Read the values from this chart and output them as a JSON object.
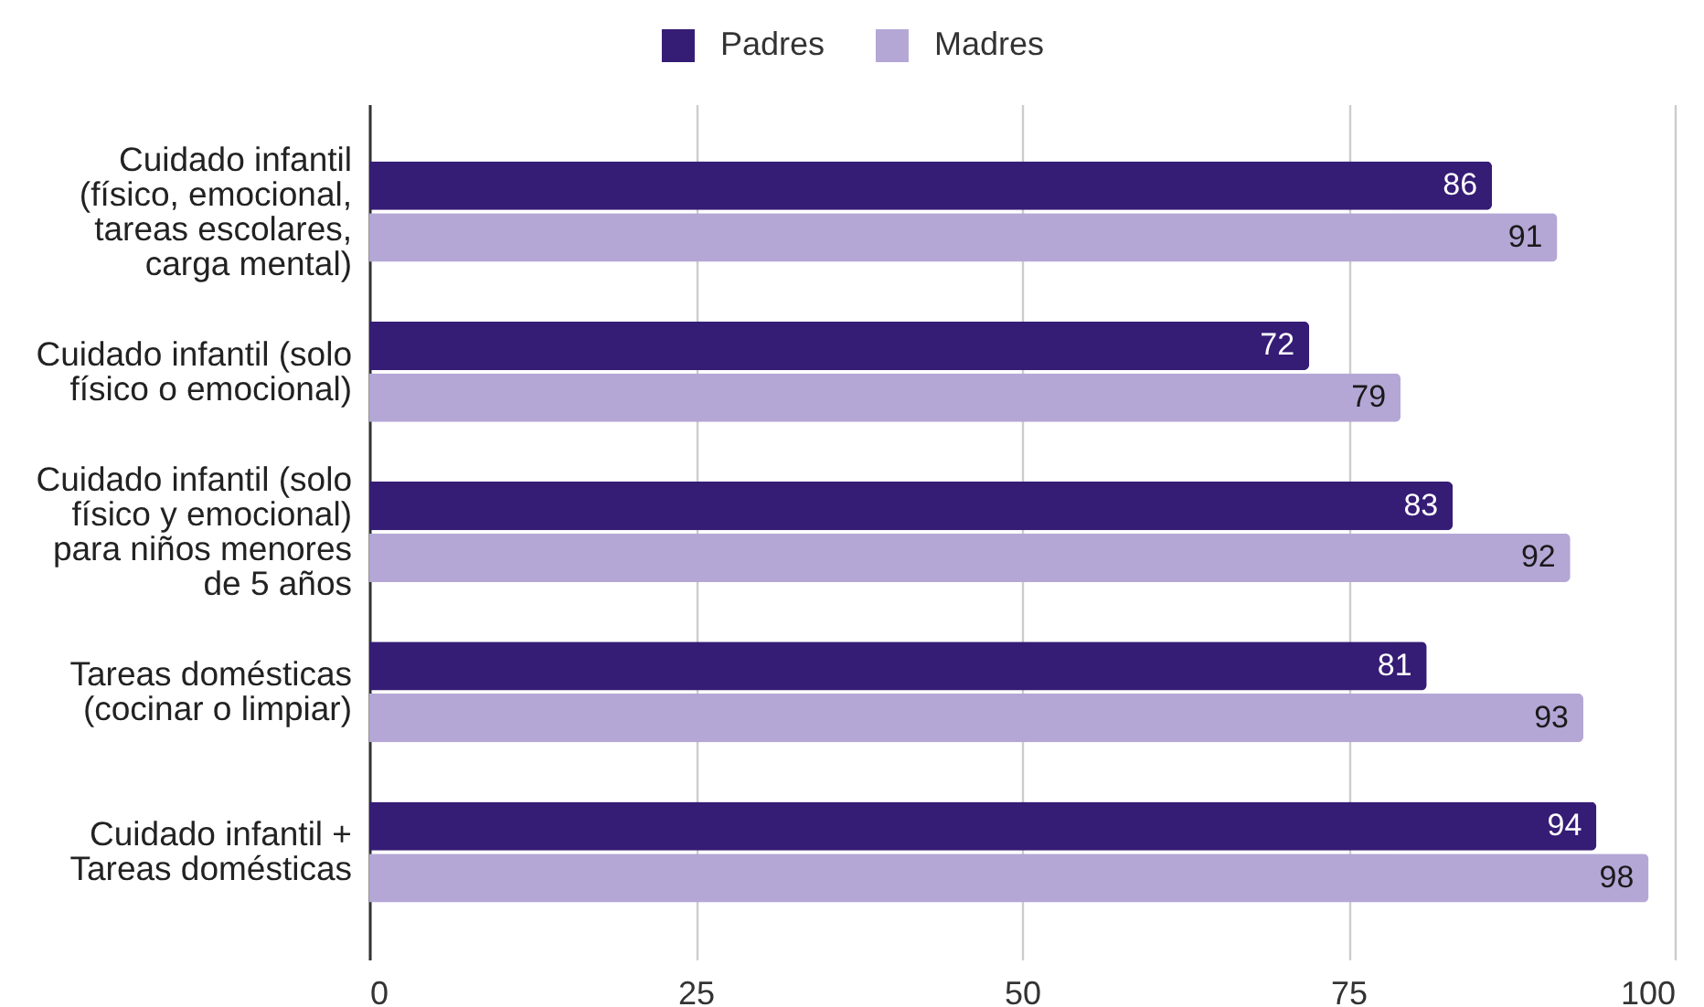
{
  "chart_data": {
    "type": "bar",
    "orientation": "horizontal",
    "categories": [
      "Cuidado infantil (físico, emocional, tareas escolares, carga mental)",
      "Cuidado infantil (solo físico o emocional)",
      "Cuidado infantil (solo físico y emocional) para niños menores de 5 años",
      "Tareas domésticas (cocinar o limpiar)",
      "Cuidado infantil + Tareas domésticas"
    ],
    "series": [
      {
        "name": "Padres",
        "color": "#351c75",
        "values": [
          86,
          72,
          83,
          81,
          94
        ]
      },
      {
        "name": "Madres",
        "color": "#b4a7d6",
        "values": [
          91,
          79,
          92,
          93,
          98
        ]
      }
    ],
    "xlim": [
      0,
      100
    ],
    "xticks": [
      0,
      25,
      50,
      75,
      100
    ],
    "grid": "x",
    "legend": "top",
    "data_labels": true
  }
}
